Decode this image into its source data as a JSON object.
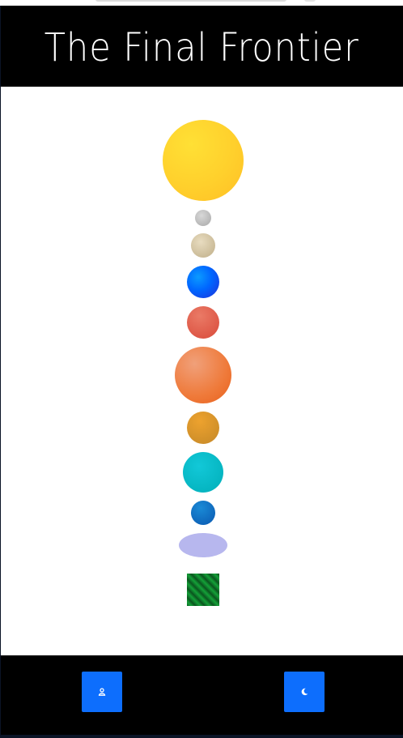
{
  "header": {
    "title": "The Final Frontier"
  },
  "planets": [
    {
      "name": "sun",
      "color": "#ffd02c"
    },
    {
      "name": "mercury",
      "color": "#a8a8a8"
    },
    {
      "name": "venus",
      "color": "#bfae88"
    },
    {
      "name": "earth",
      "color": "#0066ff"
    },
    {
      "name": "mars",
      "color": "#d94a3a"
    },
    {
      "name": "jupiter",
      "color": "#ef7a3a"
    },
    {
      "name": "saturn",
      "color": "#c48828"
    },
    {
      "name": "uranus",
      "color": "#00aeb8"
    },
    {
      "name": "neptune",
      "color": "#0a58b0"
    },
    {
      "name": "belt",
      "color": "#b7b7ee"
    },
    {
      "name": "satellite",
      "color": "#14a038"
    }
  ],
  "footer": {
    "left_button_icon": "astronaut-icon",
    "right_button_icon": "moon-icon",
    "button_color": "#0d6efd"
  }
}
